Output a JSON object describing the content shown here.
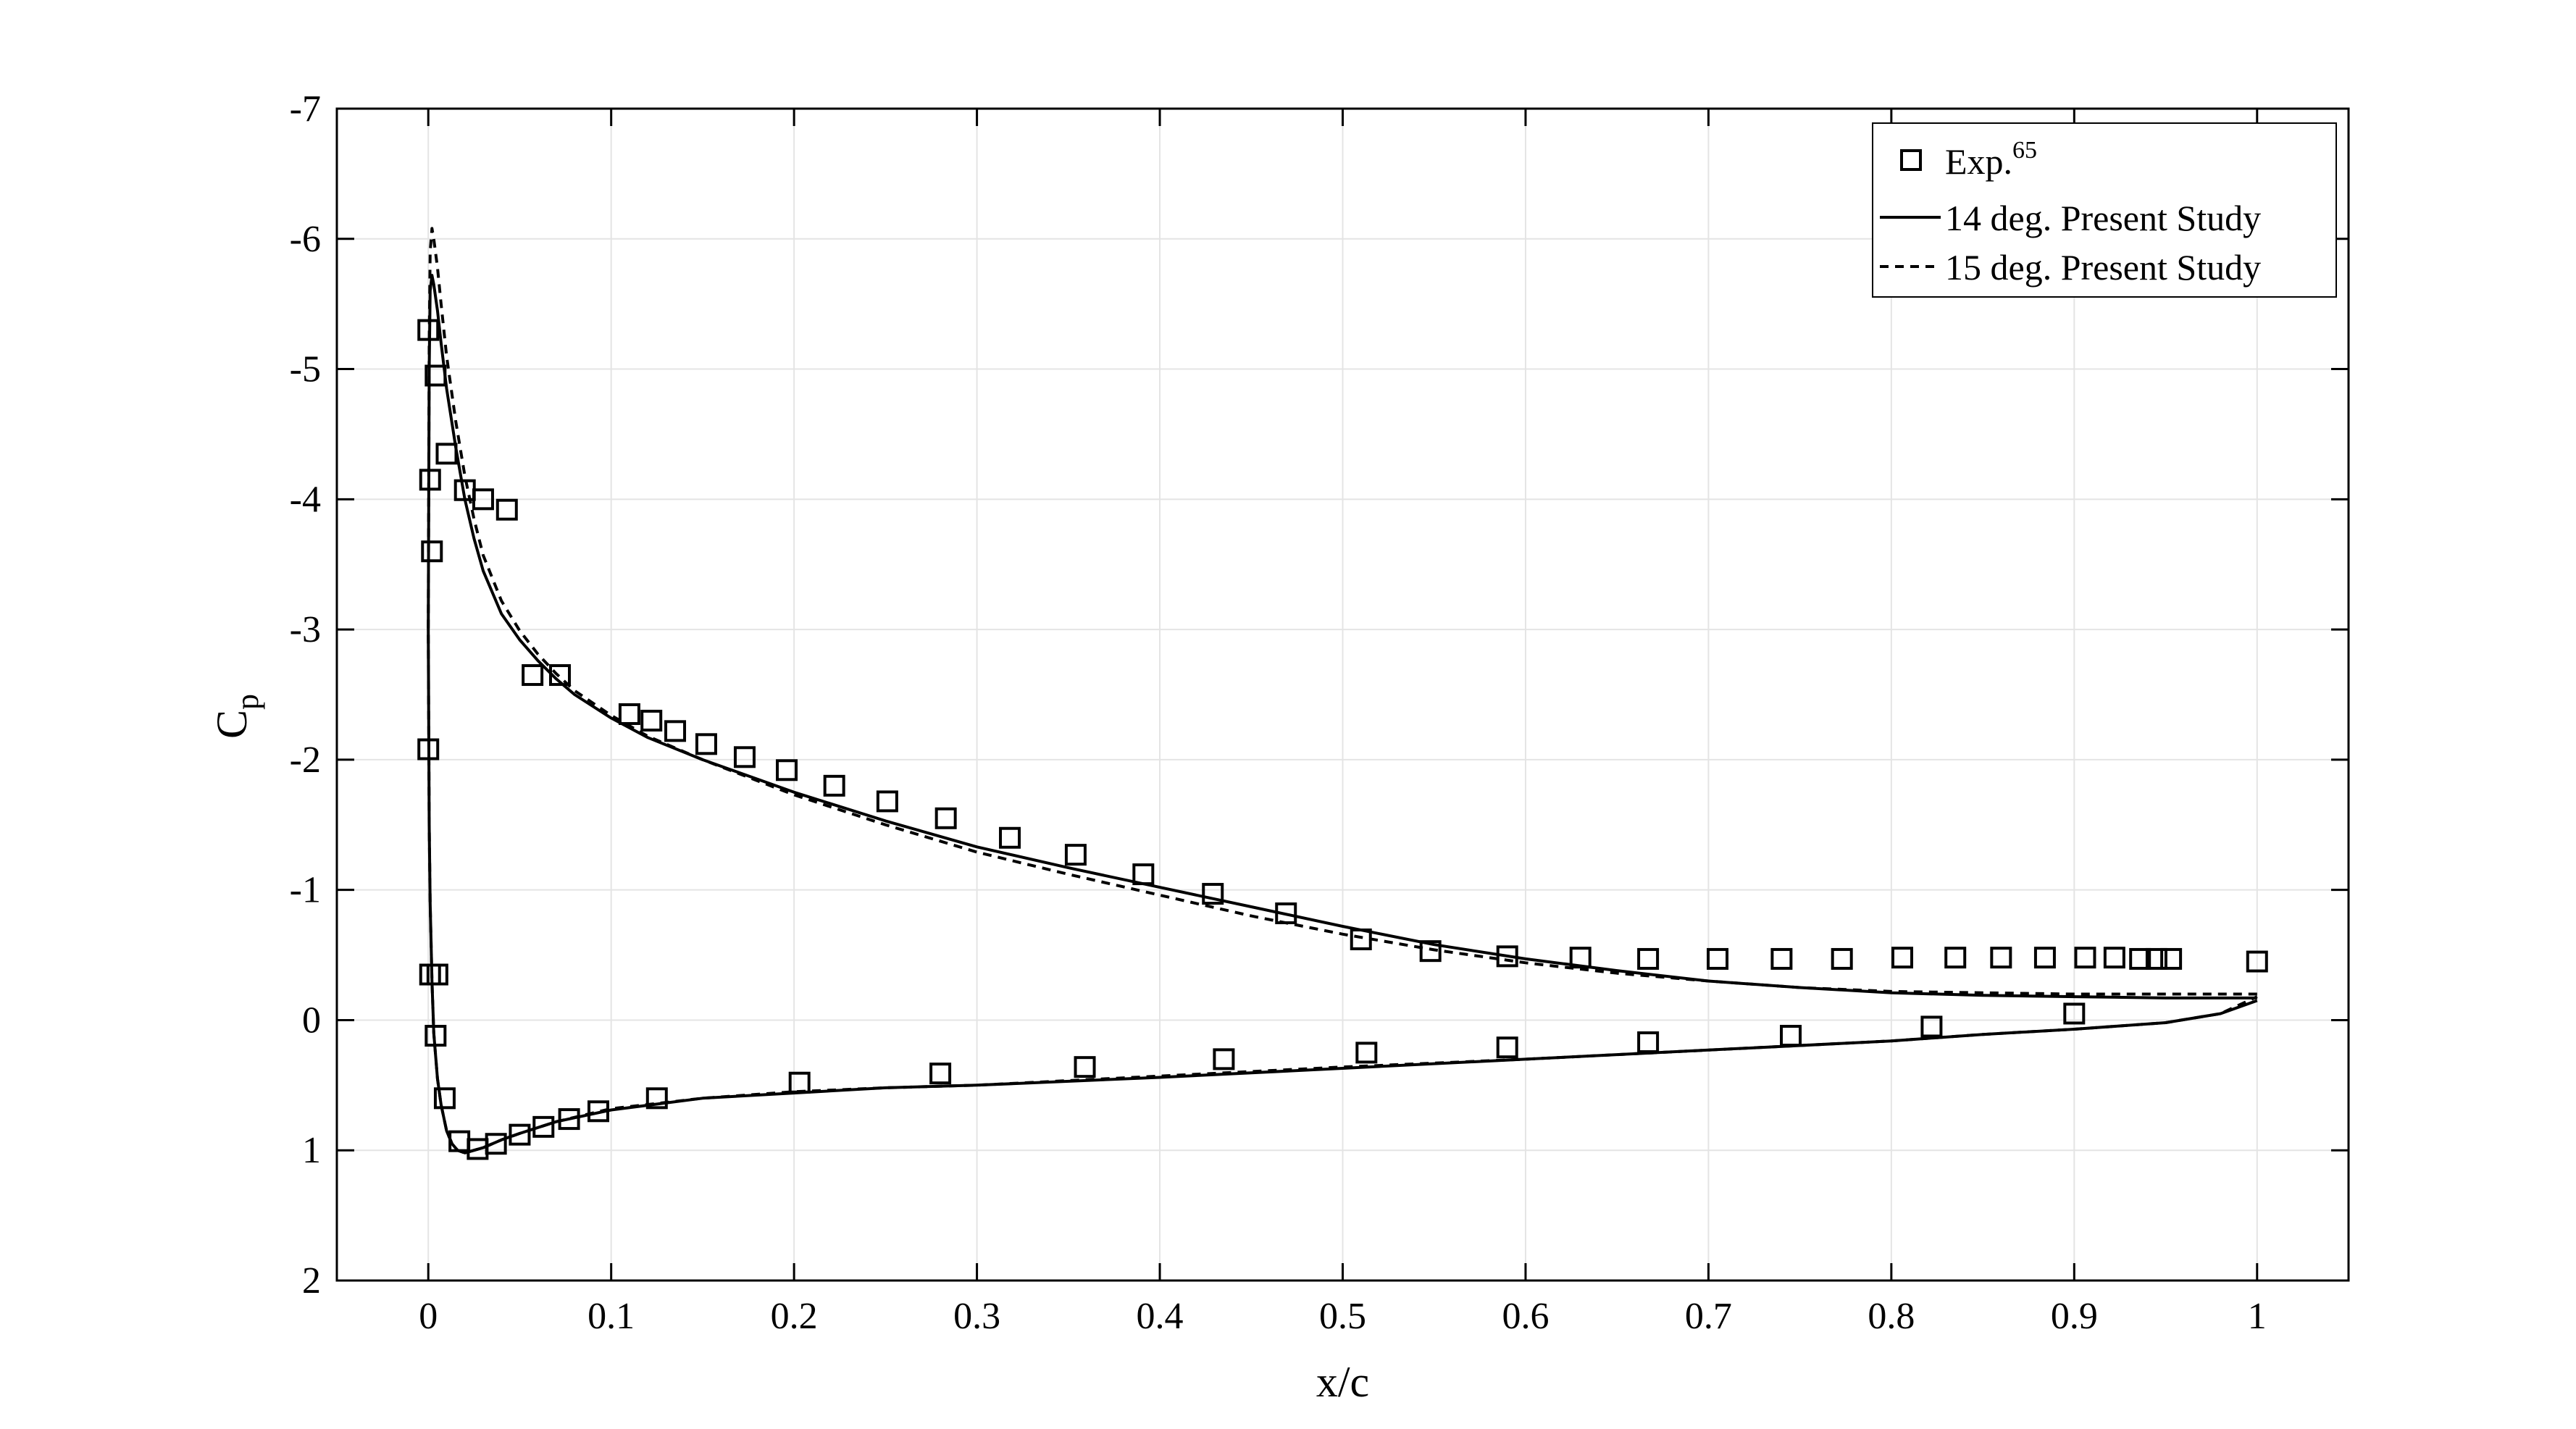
{
  "chart_data": {
    "type": "line",
    "xlabel": "x/c",
    "ylabel": {
      "main": "C",
      "sub": "p"
    },
    "xlim": [
      -0.05,
      1.05
    ],
    "ylim": [
      2,
      -7
    ],
    "y_reversed": true,
    "grid": true,
    "legend_position": "top-right",
    "x_ticks": [
      0,
      0.1,
      0.2,
      0.3,
      0.4,
      0.5,
      0.6,
      0.7,
      0.8,
      0.9,
      1
    ],
    "x_tick_labels": [
      "0",
      "0.1",
      "0.2",
      "0.3",
      "0.4",
      "0.5",
      "0.6",
      "0.7",
      "0.8",
      "0.9",
      "1"
    ],
    "y_ticks": [
      -7,
      -6,
      -5,
      -4,
      -3,
      -2,
      -1,
      0,
      1,
      2
    ],
    "y_tick_labels": [
      "-7",
      "-6",
      "-5",
      "-4",
      "-3",
      "-2",
      "-1",
      "0",
      "1",
      "2"
    ],
    "legend": [
      {
        "label": "Exp.",
        "superscript": "65",
        "marker": "square"
      },
      {
        "label": "14 deg. Present Study",
        "line": "solid"
      },
      {
        "label": "15 deg. Present Study",
        "line": "dashed"
      }
    ],
    "series": [
      {
        "name": "Exp.65",
        "style": "square",
        "x": [
          0.0,
          0.001,
          0.002,
          0.004,
          0.01,
          0.02,
          0.03,
          0.043,
          0.057,
          0.072,
          0.11,
          0.122,
          0.135,
          0.152,
          0.173,
          0.196,
          0.222,
          0.251,
          0.283,
          0.318,
          0.354,
          0.391,
          0.429,
          0.469,
          0.51,
          0.548,
          0.59,
          0.63,
          0.667,
          0.705,
          0.74,
          0.773,
          0.806,
          0.835,
          0.86,
          0.884,
          0.906,
          0.922,
          0.936,
          0.945,
          0.953,
          1.0,
          0.0,
          0.001,
          0.004,
          0.005,
          0.009,
          0.017,
          0.027,
          0.037,
          0.05,
          0.063,
          0.077,
          0.093,
          0.125,
          0.203,
          0.28,
          0.359,
          0.435,
          0.513,
          0.59,
          0.667,
          0.745,
          0.822,
          0.9
        ],
        "y": [
          -5.3,
          -4.15,
          -3.6,
          -4.95,
          -4.35,
          -4.07,
          -4.0,
          -3.92,
          -2.65,
          -2.65,
          -2.35,
          -2.3,
          -2.22,
          -2.12,
          -2.02,
          -1.92,
          -1.8,
          -1.68,
          -1.55,
          -1.4,
          -1.27,
          -1.12,
          -0.97,
          -0.82,
          -0.62,
          -0.53,
          -0.49,
          -0.48,
          -0.47,
          -0.47,
          -0.47,
          -0.47,
          -0.48,
          -0.48,
          -0.48,
          -0.48,
          -0.48,
          -0.48,
          -0.47,
          -0.47,
          -0.47,
          -0.45,
          -2.08,
          -0.35,
          0.12,
          -0.35,
          0.6,
          0.93,
          0.99,
          0.95,
          0.88,
          0.82,
          0.76,
          0.7,
          0.6,
          0.48,
          0.41,
          0.36,
          0.3,
          0.25,
          0.21,
          0.17,
          0.12,
          0.05,
          -0.05
        ]
      },
      {
        "name": "14 deg. Present Study",
        "style": "solid",
        "x": [
          1.0,
          0.95,
          0.9,
          0.85,
          0.8,
          0.75,
          0.7,
          0.65,
          0.6,
          0.55,
          0.5,
          0.45,
          0.4,
          0.35,
          0.3,
          0.25,
          0.2,
          0.15,
          0.12,
          0.1,
          0.08,
          0.07,
          0.06,
          0.05,
          0.04,
          0.03,
          0.025,
          0.02,
          0.015,
          0.01,
          0.007,
          0.005,
          0.003,
          0.002,
          0.001,
          0.0005,
          0.0,
          0.0005,
          0.001,
          0.002,
          0.003,
          0.005,
          0.007,
          0.01,
          0.013,
          0.016,
          0.02,
          0.025,
          0.03,
          0.04,
          0.05,
          0.07,
          0.1,
          0.15,
          0.2,
          0.25,
          0.3,
          0.4,
          0.5,
          0.6,
          0.7,
          0.8,
          0.85,
          0.9,
          0.95,
          0.98,
          1.0
        ],
        "y": [
          -0.17,
          -0.17,
          -0.18,
          -0.19,
          -0.21,
          -0.25,
          -0.3,
          -0.38,
          -0.47,
          -0.58,
          -0.72,
          -0.87,
          -1.02,
          -1.17,
          -1.33,
          -1.53,
          -1.75,
          -2.0,
          -2.17,
          -2.32,
          -2.5,
          -2.62,
          -2.76,
          -2.92,
          -3.12,
          -3.45,
          -3.7,
          -4.0,
          -4.4,
          -4.85,
          -5.2,
          -5.45,
          -5.65,
          -5.72,
          -5.6,
          -5.0,
          -3.0,
          -1.5,
          -0.9,
          -0.3,
          0.1,
          0.45,
          0.65,
          0.85,
          0.95,
          1.0,
          1.02,
          1.0,
          0.98,
          0.92,
          0.87,
          0.78,
          0.69,
          0.6,
          0.56,
          0.52,
          0.5,
          0.44,
          0.37,
          0.3,
          0.23,
          0.16,
          0.11,
          0.07,
          0.02,
          -0.05,
          -0.15
        ]
      },
      {
        "name": "15 deg. Present Study",
        "style": "dashed",
        "x": [
          1.0,
          0.95,
          0.9,
          0.85,
          0.8,
          0.75,
          0.7,
          0.65,
          0.6,
          0.55,
          0.5,
          0.45,
          0.4,
          0.35,
          0.3,
          0.25,
          0.2,
          0.15,
          0.12,
          0.1,
          0.08,
          0.07,
          0.06,
          0.05,
          0.04,
          0.03,
          0.025,
          0.02,
          0.015,
          0.01,
          0.007,
          0.005,
          0.003,
          0.002,
          0.001,
          0.0005,
          0.0,
          0.0005,
          0.001,
          0.002,
          0.003,
          0.005,
          0.007,
          0.01,
          0.013,
          0.016,
          0.02,
          0.025,
          0.03,
          0.04,
          0.05,
          0.07,
          0.1,
          0.15,
          0.2,
          0.25,
          0.3,
          0.4,
          0.5,
          0.6,
          0.7,
          0.8,
          0.85,
          0.9,
          0.95,
          0.98,
          1.0
        ],
        "y": [
          -0.2,
          -0.2,
          -0.2,
          -0.21,
          -0.22,
          -0.25,
          -0.3,
          -0.36,
          -0.44,
          -0.54,
          -0.66,
          -0.8,
          -0.96,
          -1.12,
          -1.29,
          -1.5,
          -1.73,
          -2.0,
          -2.18,
          -2.34,
          -2.53,
          -2.66,
          -2.81,
          -2.99,
          -3.22,
          -3.57,
          -3.85,
          -4.18,
          -4.6,
          -5.1,
          -5.5,
          -5.78,
          -6.0,
          -6.08,
          -5.9,
          -5.2,
          -3.0,
          -1.5,
          -0.9,
          -0.3,
          0.1,
          0.45,
          0.65,
          0.85,
          0.95,
          1.0,
          1.02,
          1.0,
          0.98,
          0.92,
          0.87,
          0.78,
          0.68,
          0.6,
          0.55,
          0.52,
          0.5,
          0.43,
          0.36,
          0.3,
          0.23,
          0.16,
          0.11,
          0.07,
          0.02,
          -0.05,
          -0.18
        ]
      }
    ]
  }
}
